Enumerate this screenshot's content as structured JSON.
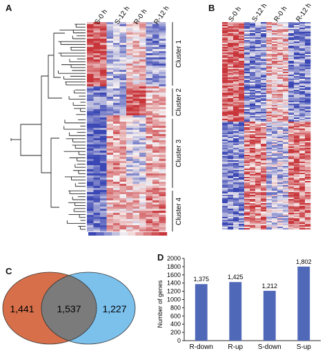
{
  "panels": {
    "a": {
      "letter": "A"
    },
    "b": {
      "letter": "B"
    },
    "c": {
      "letter": "C"
    },
    "d": {
      "letter": "D"
    }
  },
  "heatmap_a": {
    "columns": [
      "S-0 h",
      "S-12 h",
      "R-0 h",
      "R-12 h"
    ],
    "clusters": [
      "Cluster 1",
      "Cluster 2",
      "Cluster 3",
      "Cluster 4"
    ],
    "colors": {
      "high": "#c8353a",
      "mid": "#f7f2f2",
      "low": "#3a47b4"
    }
  },
  "heatmap_b": {
    "columns": [
      "S-0 h",
      "S-12 h",
      "R-0 h",
      "R-12 h"
    ]
  },
  "chart_data": [
    {
      "type": "venn",
      "sets": [
        {
          "only_value": "1,441",
          "color": "#d7704a"
        },
        {
          "only_value": "1,227",
          "color": "#7cc0ec"
        }
      ],
      "intersection": {
        "value": "1,537",
        "color": "#7b7b7b"
      }
    },
    {
      "type": "bar",
      "categories": [
        "R-down",
        "R-up",
        "S-down",
        "S-up"
      ],
      "values": [
        1375,
        1425,
        1212,
        1802
      ],
      "value_labels": [
        "1,375",
        "1,425",
        "1,212",
        "1,802"
      ],
      "ylabel": "Number of genes",
      "ylim": [
        0,
        2000
      ],
      "yticks": [
        0,
        200,
        400,
        600,
        800,
        1000,
        1200,
        1400,
        1600,
        1800,
        2000
      ],
      "color": "#5068b8",
      "grid": false,
      "legend": "none"
    }
  ]
}
